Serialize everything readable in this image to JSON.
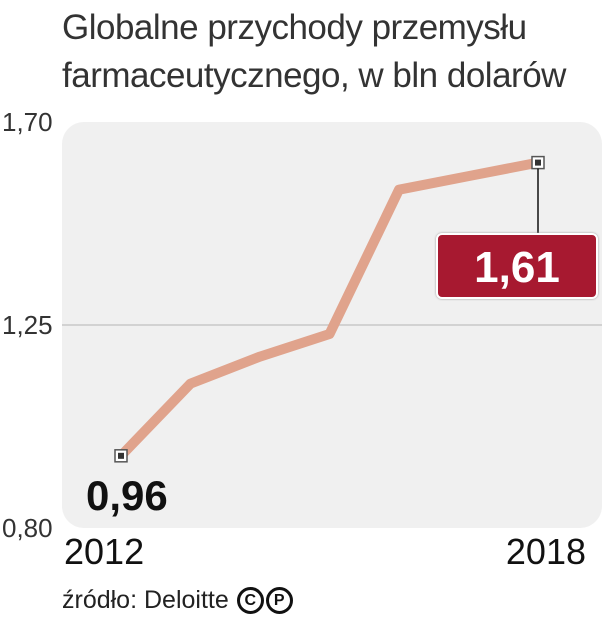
{
  "chart_data": {
    "type": "line",
    "title_lines": [
      "Globalne przychody przemysłu",
      "farmaceutycznego, w bln dolarów"
    ],
    "x": [
      2012,
      2013,
      2014,
      2015,
      2016,
      2017,
      2018
    ],
    "x_tick_labels": [
      "2012",
      "2018"
    ],
    "values": [
      0.96,
      1.12,
      1.18,
      1.23,
      1.55,
      1.58,
      1.61
    ],
    "ylim": [
      0.8,
      1.7
    ],
    "y_ticks": [
      {
        "value": 0.8,
        "label": "0,80"
      },
      {
        "value": 1.25,
        "label": "1,25"
      },
      {
        "value": 1.7,
        "label": "1,70"
      }
    ],
    "grid": "horizontal line at 1,25",
    "first_label": "0,96",
    "last_label": "1,61",
    "line_color": "#e0a38c",
    "label_box_color": "#a71930",
    "plot_bg_color": "#f0f0f0"
  },
  "footer": {
    "source": "źródło: Deloitte",
    "license_icons": [
      "C",
      "P"
    ]
  }
}
